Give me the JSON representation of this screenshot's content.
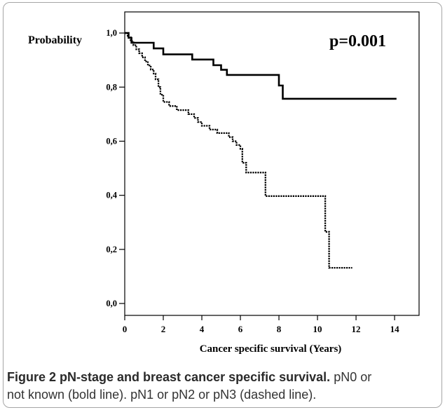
{
  "figure": {
    "caption": {
      "label": "Figure 2 pN-stage and breast cancer specific survival.",
      "line1_rest": "pN0 or",
      "line2": "not known (bold line). pN1 or pN2 or pN3 (dashed line)."
    }
  },
  "colors": {
    "curve": "#000000",
    "axis": "#000000"
  },
  "chart_data": {
    "type": "line",
    "step": true,
    "grid": false,
    "xlabel": "Cancer specific survival (Years)",
    "ylabel": "Probability",
    "annotation": "p=0.001",
    "xlim": [
      0,
      15.27
    ],
    "ylim": [
      -0.044,
      1.078
    ],
    "x_ticks": [
      0,
      2,
      4,
      6,
      8,
      10,
      12,
      14
    ],
    "x_tick_labels": [
      "0",
      "2",
      "4",
      "6",
      "8",
      "10",
      "12",
      "14"
    ],
    "y_ticks": [
      0.0,
      0.2,
      0.4,
      0.6,
      0.8,
      1.0
    ],
    "y_tick_labels": [
      "0,0",
      "0,2",
      "0,4",
      "0,6",
      "0,8",
      "1,0"
    ],
    "series": [
      {
        "dashed": false,
        "x": [
          0,
          0.2,
          0.35,
          1.5,
          2.0,
          3.5,
          4.6,
          5.0,
          5.3,
          8.0,
          8.2,
          14.1
        ],
        "y": [
          1.0,
          0.982,
          0.964,
          0.943,
          0.921,
          0.902,
          0.881,
          0.864,
          0.845,
          0.806,
          0.757,
          0.757
        ]
      },
      {
        "dashed": true,
        "x": [
          0,
          0.15,
          0.3,
          0.45,
          0.6,
          0.75,
          0.9,
          1.05,
          1.2,
          1.35,
          1.5,
          1.6,
          1.75,
          1.85,
          2.0,
          2.3,
          2.7,
          3.3,
          3.6,
          3.8,
          4.0,
          4.4,
          4.8,
          5.4,
          5.6,
          5.8,
          6.0,
          6.1,
          6.3,
          7.3,
          10.4,
          10.6,
          11.8
        ],
        "y": [
          1.0,
          0.985,
          0.97,
          0.955,
          0.94,
          0.925,
          0.91,
          0.895,
          0.88,
          0.865,
          0.85,
          0.829,
          0.8,
          0.772,
          0.745,
          0.73,
          0.715,
          0.7,
          0.686,
          0.671,
          0.657,
          0.643,
          0.63,
          0.615,
          0.6,
          0.586,
          0.572,
          0.52,
          0.484,
          0.397,
          0.265,
          0.132,
          0.132
        ]
      }
    ]
  }
}
